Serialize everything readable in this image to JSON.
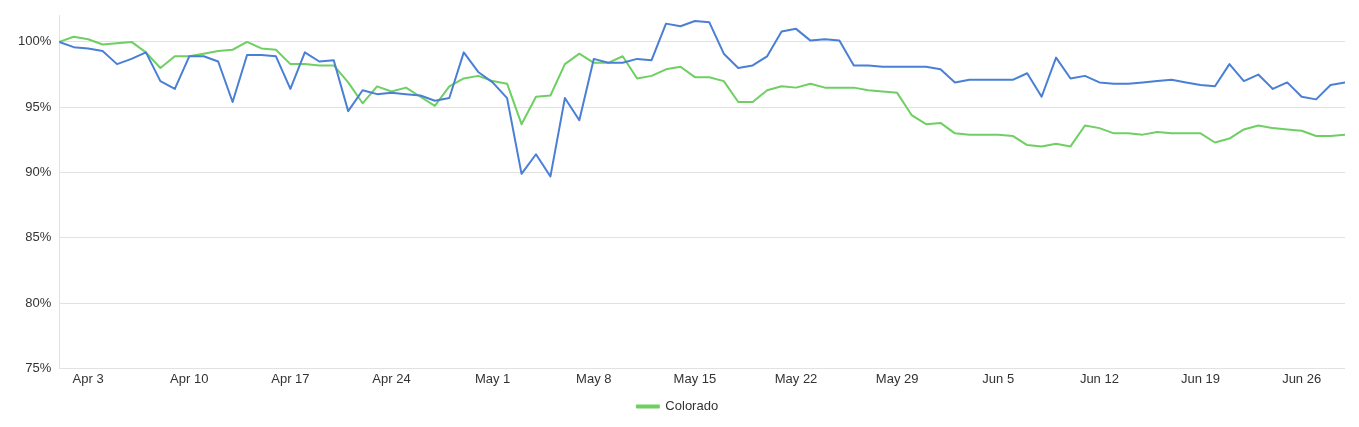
{
  "chart_data": {
    "type": "line",
    "x": [
      "--04-01",
      "--04-02",
      "--04-03",
      "--04-04",
      "--04-05",
      "--04-06",
      "--04-07",
      "--04-08",
      "--04-09",
      "--04-10",
      "--04-11",
      "--04-12",
      "--04-13",
      "--04-14",
      "--04-15",
      "--04-16",
      "--04-17",
      "--04-18",
      "--04-19",
      "--04-20",
      "--04-21",
      "--04-22",
      "--04-23",
      "--04-24",
      "--04-25",
      "--04-26",
      "--04-27",
      "--04-28",
      "--04-29",
      "--04-30",
      "--05-01",
      "--05-02",
      "--05-03",
      "--05-04",
      "--05-05",
      "--05-06",
      "--05-07",
      "--05-08",
      "--05-09",
      "--05-10",
      "--05-11",
      "--05-12",
      "--05-13",
      "--05-14",
      "--05-15",
      "--05-16",
      "--05-17",
      "--05-18",
      "--05-19",
      "--05-20",
      "--05-21",
      "--05-22",
      "--05-23",
      "--05-24",
      "--05-25",
      "--05-26",
      "--05-27",
      "--05-28",
      "--05-29",
      "--05-30",
      "--05-31",
      "--06-01",
      "--06-02",
      "--06-03",
      "--06-04",
      "--06-05",
      "--06-06",
      "--06-07",
      "--06-08",
      "--06-09",
      "--06-10",
      "--06-11",
      "--06-12",
      "--06-13",
      "--06-14",
      "--06-15",
      "--06-16",
      "--06-17",
      "--06-18",
      "--06-19",
      "--06-20",
      "--06-21",
      "--06-22",
      "--06-23",
      "--06-24",
      "--06-25",
      "--06-26",
      "--06-27",
      "--06-28",
      "--06-29"
    ],
    "series": [
      {
        "color": "#4a7fd6",
        "values": [
          100.0,
          99.6,
          99.5,
          99.3,
          98.3,
          98.7,
          99.2,
          97.0,
          96.4,
          98.9,
          98.9,
          98.5,
          95.4,
          99.0,
          99.0,
          98.9,
          96.4,
          99.2,
          98.5,
          98.6,
          94.7,
          96.3,
          96.0,
          96.1,
          96.0,
          95.9,
          95.5,
          95.7,
          99.2,
          97.7,
          96.9,
          95.7,
          89.9,
          91.4,
          89.7,
          95.7,
          94.0,
          98.7,
          98.4,
          98.4,
          98.7,
          98.6,
          101.4,
          101.2,
          101.6,
          101.5,
          99.1,
          98.0,
          98.2,
          98.9,
          100.8,
          101.0,
          100.1,
          100.2,
          100.1,
          98.2,
          98.2,
          98.1,
          98.1,
          98.1,
          98.1,
          97.9,
          96.9,
          97.1,
          97.1,
          97.1,
          97.1,
          97.6,
          95.8,
          98.8,
          97.2,
          97.4,
          96.9,
          96.8,
          96.8,
          96.9,
          97.0,
          97.1,
          96.9,
          96.7,
          96.6,
          98.3,
          97.0,
          97.5,
          96.4,
          96.9,
          95.8,
          95.6,
          96.7,
          96.9
        ]
      },
      {
        "name": "Colorado",
        "color": "#6fcf63",
        "values": [
          100.0,
          100.4,
          100.2,
          99.8,
          99.9,
          100.0,
          99.2,
          98.0,
          98.9,
          98.9,
          99.1,
          99.3,
          99.4,
          100.0,
          99.5,
          99.4,
          98.3,
          98.3,
          98.2,
          98.2,
          96.9,
          95.3,
          96.6,
          96.2,
          96.5,
          95.8,
          95.1,
          96.6,
          97.2,
          97.4,
          97.0,
          96.8,
          93.7,
          95.8,
          95.9,
          98.3,
          99.1,
          98.4,
          98.4,
          98.9,
          97.2,
          97.4,
          97.9,
          98.1,
          97.3,
          97.3,
          97.0,
          95.4,
          95.4,
          96.3,
          96.6,
          96.5,
          96.8,
          96.5,
          96.5,
          96.5,
          96.3,
          96.2,
          96.1,
          94.4,
          93.7,
          93.8,
          93.0,
          92.9,
          92.9,
          92.9,
          92.8,
          92.1,
          92.0,
          92.2,
          92.0,
          93.6,
          93.4,
          93.0,
          93.0,
          92.9,
          93.1,
          93.0,
          93.0,
          93.0,
          92.3,
          92.6,
          93.3,
          93.6,
          93.4,
          93.3,
          93.2,
          92.8,
          92.8,
          92.9
        ]
      }
    ],
    "xlim": [
      "--04-01",
      "--06-29"
    ],
    "xticks": [
      {
        "value": "--04-03",
        "label": "Apr 3"
      },
      {
        "value": "--04-10",
        "label": "Apr 10"
      },
      {
        "value": "--04-17",
        "label": "Apr 17"
      },
      {
        "value": "--04-24",
        "label": "Apr 24"
      },
      {
        "value": "--05-01",
        "label": "May 1"
      },
      {
        "value": "--05-08",
        "label": "May 8"
      },
      {
        "value": "--05-15",
        "label": "May 15"
      },
      {
        "value": "--05-22",
        "label": "May 22"
      },
      {
        "value": "--05-29",
        "label": "May 29"
      },
      {
        "value": "--06-05",
        "label": "Jun 5"
      },
      {
        "value": "--06-12",
        "label": "Jun 12"
      },
      {
        "value": "--06-19",
        "label": "Jun 19"
      },
      {
        "value": "--06-26",
        "label": "Jun 26"
      }
    ],
    "ylim": [
      75,
      102
    ],
    "yticks": [
      {
        "value": 75,
        "label": "75%"
      },
      {
        "value": 80,
        "label": "80%"
      },
      {
        "value": 85,
        "label": "85%"
      },
      {
        "value": 90,
        "label": "90%"
      },
      {
        "value": 95,
        "label": "95%"
      },
      {
        "value": 100,
        "label": "100%"
      }
    ],
    "grid": "y",
    "legend": "bottom",
    "marker": "none",
    "line_style": "solid"
  }
}
